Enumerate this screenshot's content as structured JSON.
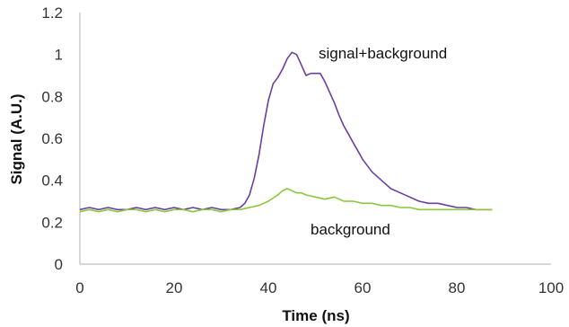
{
  "chart_data": {
    "type": "line",
    "title": "",
    "xlabel": "Time (ns)",
    "ylabel": "Signal (A.U.)",
    "xlim": [
      0,
      100
    ],
    "ylim": [
      0,
      1.2
    ],
    "x_ticks": [
      "0",
      "20",
      "40",
      "60",
      "80",
      "100"
    ],
    "y_ticks": [
      "0",
      "0.2",
      "0.4",
      "0.6",
      "0.8",
      "1",
      "1.2"
    ],
    "grid": false,
    "legend": "none",
    "annotations": [
      "signal+background",
      "background"
    ],
    "series": [
      {
        "color": "#6a3fa0",
        "x": [
          0,
          2,
          4,
          6,
          8,
          10,
          12,
          14,
          16,
          18,
          20,
          22,
          24,
          26,
          28,
          30,
          32,
          34,
          35,
          36,
          37,
          38,
          39,
          40,
          41,
          42,
          43,
          44,
          45,
          46,
          47,
          48,
          49,
          50,
          51,
          52,
          53,
          54,
          55,
          56,
          57,
          58,
          59,
          60,
          62,
          64,
          66,
          68,
          70,
          72,
          74,
          76,
          78,
          80,
          82,
          84,
          86,
          87.5
        ],
        "y": [
          0.26,
          0.27,
          0.26,
          0.27,
          0.26,
          0.26,
          0.27,
          0.26,
          0.27,
          0.26,
          0.27,
          0.26,
          0.27,
          0.26,
          0.27,
          0.26,
          0.26,
          0.27,
          0.29,
          0.33,
          0.41,
          0.52,
          0.66,
          0.78,
          0.86,
          0.89,
          0.93,
          0.98,
          1.01,
          1.0,
          0.95,
          0.9,
          0.91,
          0.91,
          0.91,
          0.87,
          0.82,
          0.77,
          0.71,
          0.66,
          0.62,
          0.58,
          0.54,
          0.5,
          0.44,
          0.4,
          0.36,
          0.34,
          0.32,
          0.3,
          0.29,
          0.29,
          0.28,
          0.27,
          0.27,
          0.26,
          0.26,
          0.26
        ]
      },
      {
        "color": "#8cc63f",
        "x": [
          0,
          2,
          4,
          6,
          8,
          10,
          12,
          14,
          16,
          18,
          20,
          22,
          24,
          26,
          28,
          30,
          32,
          34,
          36,
          38,
          40,
          42,
          43,
          44,
          45,
          46,
          47,
          48,
          50,
          52,
          54,
          56,
          58,
          60,
          62,
          64,
          66,
          68,
          70,
          72,
          74,
          76,
          78,
          80,
          82,
          84,
          86,
          87.5
        ],
        "y": [
          0.25,
          0.26,
          0.25,
          0.26,
          0.25,
          0.26,
          0.26,
          0.25,
          0.26,
          0.25,
          0.26,
          0.26,
          0.25,
          0.26,
          0.26,
          0.25,
          0.26,
          0.26,
          0.27,
          0.28,
          0.3,
          0.33,
          0.35,
          0.36,
          0.35,
          0.34,
          0.34,
          0.33,
          0.32,
          0.31,
          0.32,
          0.3,
          0.3,
          0.29,
          0.29,
          0.28,
          0.28,
          0.27,
          0.27,
          0.26,
          0.26,
          0.26,
          0.26,
          0.26,
          0.26,
          0.26,
          0.26,
          0.26
        ]
      }
    ]
  }
}
